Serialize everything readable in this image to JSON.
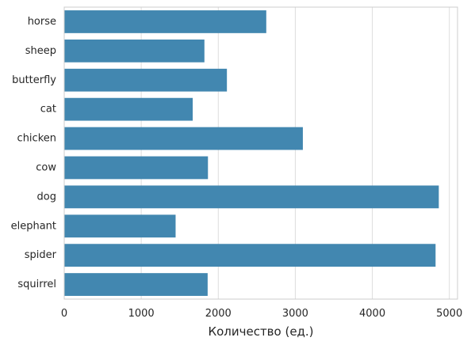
{
  "chart_data": {
    "type": "bar",
    "orientation": "horizontal",
    "categories": [
      "horse",
      "sheep",
      "butterfly",
      "cat",
      "chicken",
      "cow",
      "dog",
      "elephant",
      "spider",
      "squirrel"
    ],
    "values": [
      2623,
      1820,
      2112,
      1668,
      3098,
      1866,
      4863,
      1446,
      4821,
      1862
    ],
    "title": "",
    "xlabel": "Количество (ед.)",
    "ylabel": "",
    "xlim": [
      0,
      5106
    ],
    "xticks": [
      0,
      1000,
      2000,
      3000,
      4000,
      5000
    ],
    "grid": "vertical",
    "colors": {
      "bar": "#4287b0",
      "grid": "#dddddd",
      "spine": "#cccccc",
      "text": "#262626"
    }
  }
}
